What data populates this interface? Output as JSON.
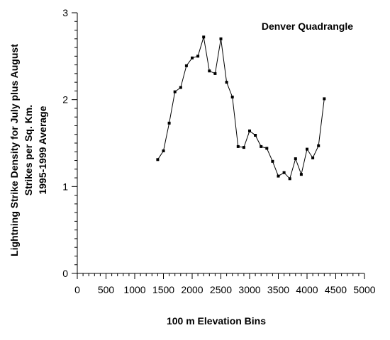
{
  "chart_data": {
    "type": "line",
    "title": "Denver  Quadrangle",
    "xlabel": "100 m Elevation Bins",
    "ylabel_lines": [
      "Lightning Strike Density for July plus August",
      "Strikes per Sq. Km.",
      "1995-1999 Average"
    ],
    "xlim": [
      0,
      5000
    ],
    "ylim": [
      0,
      3
    ],
    "x_ticks": [
      0,
      500,
      1000,
      1500,
      2000,
      2500,
      3000,
      3500,
      4000,
      4500,
      5000
    ],
    "x_tick_labels": [
      "0",
      "500",
      "1000",
      "1500",
      "2000",
      "2500",
      "3000",
      "3500",
      "4000",
      "4500",
      "5000"
    ],
    "y_ticks": [
      0,
      1,
      2,
      3
    ],
    "y_tick_labels": [
      "0",
      "1",
      "2",
      "3"
    ],
    "x_minor_step": 100,
    "y_minor_step": 0.1,
    "grid": false,
    "legend": "none",
    "series": [
      {
        "color": "#000000",
        "x": [
          1400,
          1500,
          1600,
          1700,
          1800,
          1900,
          2000,
          2100,
          2200,
          2300,
          2400,
          2500,
          2600,
          2700,
          2800,
          2900,
          3000,
          3100,
          3200,
          3300,
          3400,
          3500,
          3600,
          3700,
          3800,
          3900,
          4000,
          4100,
          4200,
          4300
        ],
        "y": [
          1.31,
          1.41,
          1.73,
          2.09,
          2.14,
          2.39,
          2.48,
          2.5,
          2.72,
          2.33,
          2.3,
          2.7,
          2.2,
          2.03,
          1.46,
          1.45,
          1.64,
          1.59,
          1.46,
          1.44,
          1.29,
          1.12,
          1.16,
          1.09,
          1.32,
          1.14,
          1.43,
          1.33,
          1.47,
          2.01
        ]
      }
    ]
  }
}
